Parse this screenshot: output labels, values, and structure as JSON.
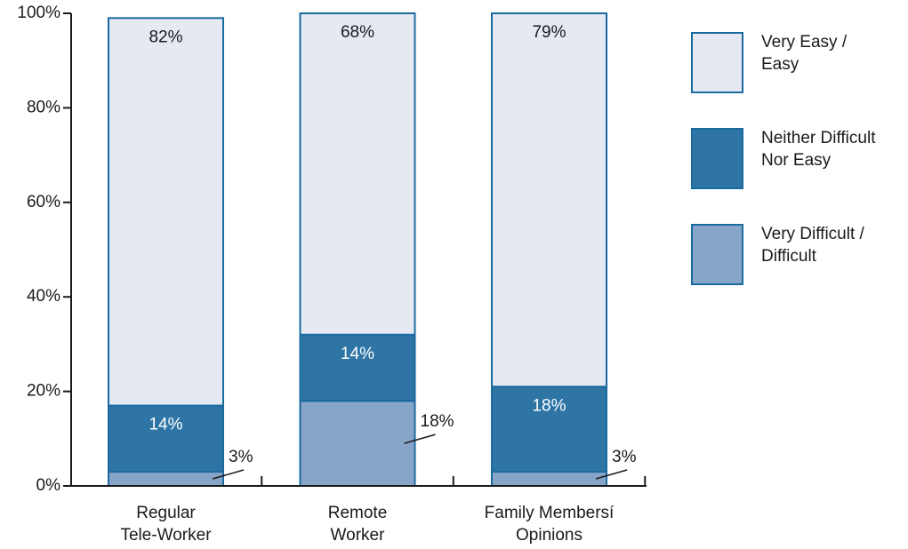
{
  "chart_data": {
    "type": "stacked_bar",
    "categories": [
      "Regular\nTele-Worker",
      "Remote\nWorker",
      "Family Membersí\nOpinions"
    ],
    "series": [
      {
        "name": "Very Difficult /\nDifficult",
        "color": "#87a5c8",
        "values": [
          3,
          18,
          3
        ],
        "value_labels": [
          "3%",
          "18%",
          "3%"
        ]
      },
      {
        "name": "Neither Difficult\nNor Easy",
        "color": "#2e75a6",
        "values": [
          14,
          14,
          18
        ],
        "value_labels": [
          "14%",
          "14%",
          "18%"
        ]
      },
      {
        "name": "Very Easy /\nEasy",
        "color": "#e4e9f2",
        "values": [
          82,
          68,
          79
        ],
        "value_labels": [
          "82%",
          "68%",
          "79%"
        ]
      }
    ],
    "ylim": [
      0,
      100
    ],
    "yticks": [
      {
        "value": 0,
        "label": "0%"
      },
      {
        "value": 20,
        "label": "20%"
      },
      {
        "value": 40,
        "label": "40%"
      },
      {
        "value": 60,
        "label": "60%"
      },
      {
        "value": 80,
        "label": "80%"
      },
      {
        "value": 100,
        "label": "100%"
      }
    ],
    "legend": "right"
  }
}
